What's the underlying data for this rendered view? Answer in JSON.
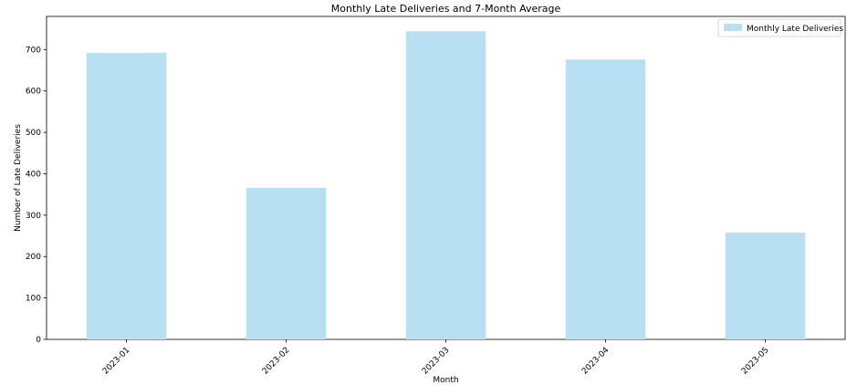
{
  "chart_data": {
    "type": "bar",
    "title": "Monthly Late Deliveries and 7-Month Average",
    "xlabel": "Month",
    "ylabel": "Number of Late Deliveries",
    "categories": [
      "2023-01",
      "2023-02",
      "2023-03",
      "2023-04",
      "2023-05"
    ],
    "series": [
      {
        "name": "Monthly Late Deliveries",
        "values": [
          692,
          366,
          744,
          676,
          258
        ],
        "color": "#b9e0f2"
      }
    ],
    "ylim": [
      0,
      780
    ],
    "yticks": [
      0,
      100,
      200,
      300,
      400,
      500,
      600,
      700
    ],
    "grid": false,
    "legend_position": "top-right"
  }
}
